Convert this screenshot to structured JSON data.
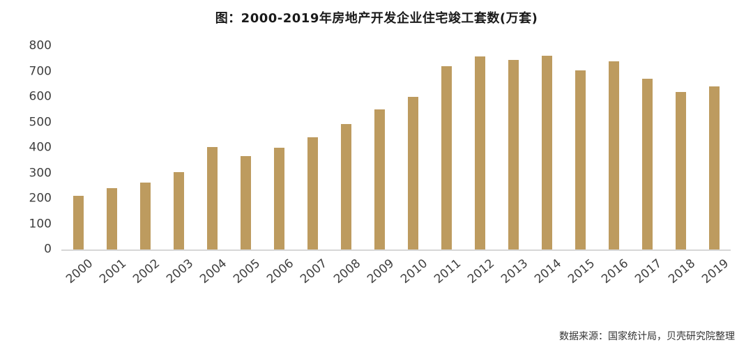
{
  "title": "图：2000-2019年房地产开发企业住宅竣工套数(万套)",
  "source": "数据来源：国家统计局，贝壳研究院整理",
  "chart_data": {
    "type": "bar",
    "title": "图：2000-2019年房地产开发企业住宅竣工套数(万套)",
    "categories": [
      "2000",
      "2001",
      "2002",
      "2003",
      "2004",
      "2005",
      "2006",
      "2007",
      "2008",
      "2009",
      "2010",
      "2011",
      "2012",
      "2013",
      "2014",
      "2015",
      "2016",
      "2017",
      "2018",
      "2019"
    ],
    "values": [
      210,
      240,
      263,
      303,
      404,
      368,
      400,
      440,
      494,
      552,
      600,
      720,
      760,
      745,
      762,
      704,
      740,
      670,
      620,
      640
    ],
    "xlabel": "",
    "ylabel": "",
    "ylim": [
      0,
      800
    ],
    "yticks": [
      0,
      100,
      200,
      300,
      400,
      500,
      600,
      700,
      800
    ],
    "bar_color": "#bd9b5f",
    "grid": false,
    "legend_position": "none",
    "source": "数据来源：国家统计局，贝壳研究院整理"
  }
}
